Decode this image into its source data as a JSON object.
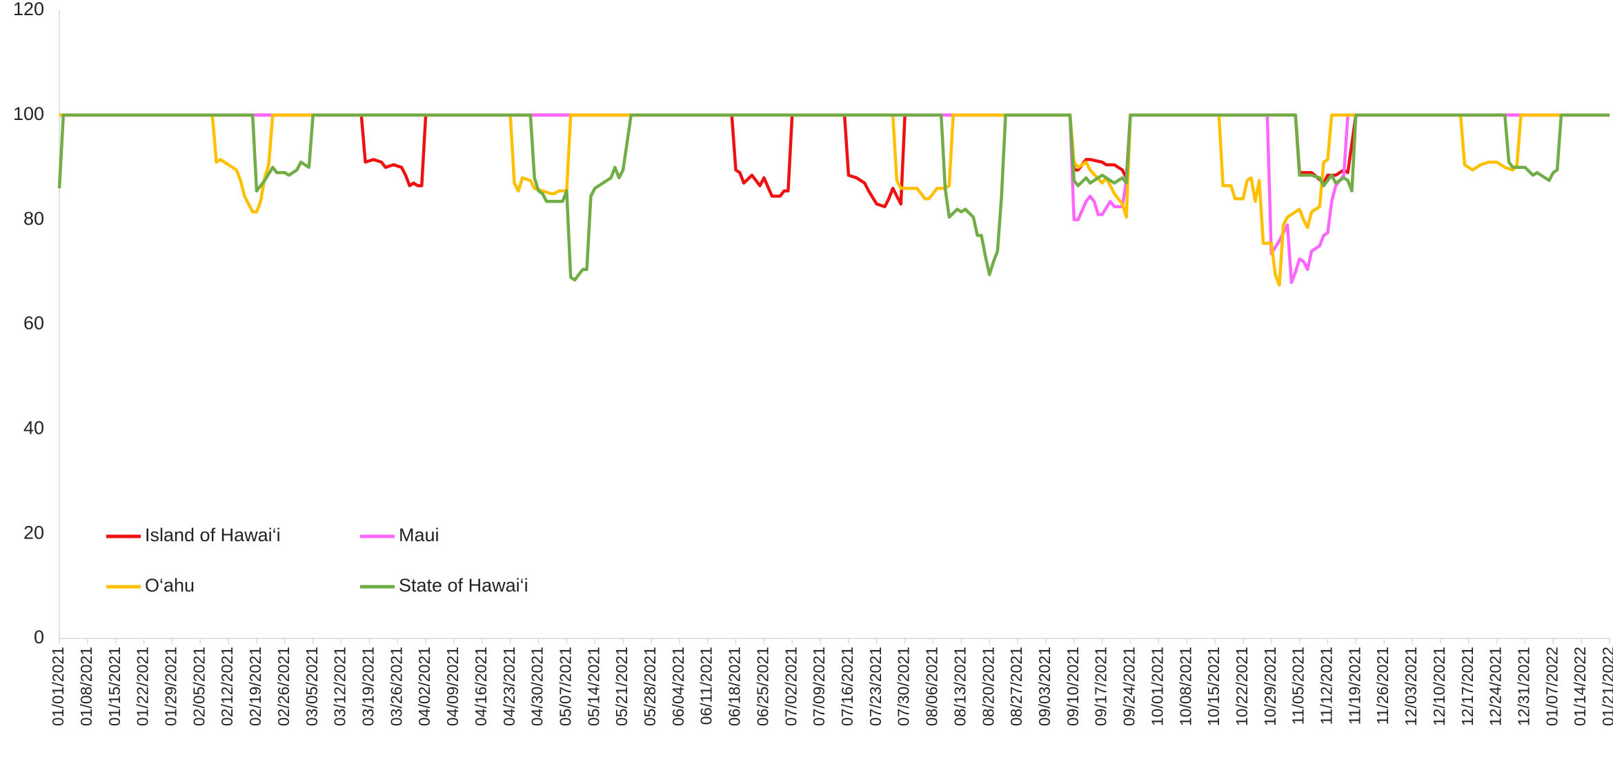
{
  "chart_data": {
    "type": "line",
    "xlim": [
      "01/01/2021",
      "01/21/2022"
    ],
    "xticks": [
      "01/01/2021",
      "01/08/2021",
      "01/15/2021",
      "01/22/2021",
      "01/29/2021",
      "02/05/2021",
      "02/12/2021",
      "02/19/2021",
      "02/26/2021",
      "03/05/2021",
      "03/12/2021",
      "03/19/2021",
      "03/26/2021",
      "04/02/2021",
      "04/09/2021",
      "04/16/2021",
      "04/23/2021",
      "04/30/2021",
      "05/07/2021",
      "05/14/2021",
      "05/21/2021",
      "05/28/2021",
      "06/04/2021",
      "06/11/2021",
      "06/18/2021",
      "06/25/2021",
      "07/02/2021",
      "07/09/2021",
      "07/16/2021",
      "07/23/2021",
      "07/30/2021",
      "08/06/2021",
      "08/13/2021",
      "08/20/2021",
      "08/27/2021",
      "09/03/2021",
      "09/10/2021",
      "09/17/2021",
      "09/24/2021",
      "10/01/2021",
      "10/08/2021",
      "10/15/2021",
      "10/22/2021",
      "10/29/2021",
      "11/05/2021",
      "11/12/2021",
      "11/19/2021",
      "11/26/2021",
      "12/03/2021",
      "12/10/2021",
      "12/17/2021",
      "12/24/2021",
      "12/31/2021",
      "01/07/2022",
      "01/14/2022",
      "01/21/2022"
    ],
    "ylim": [
      0,
      120
    ],
    "yticks": [
      0,
      20,
      40,
      60,
      80,
      100,
      120
    ],
    "grid": false,
    "legend": "lower left",
    "series": [
      {
        "name": "Island of Hawai‘i",
        "color": "#ee1111",
        "x": [
          "01/01/2021",
          "03/17/2021",
          "03/18/2021",
          "03/20/2021",
          "03/22/2021",
          "03/23/2021",
          "03/25/2021",
          "03/27/2021",
          "03/28/2021",
          "03/29/2021",
          "03/30/2021",
          "03/31/2021",
          "04/01/2021",
          "04/02/2021",
          "06/17/2021",
          "06/18/2021",
          "06/19/2021",
          "06/20/2021",
          "06/22/2021",
          "06/24/2021",
          "06/25/2021",
          "06/27/2021",
          "06/29/2021",
          "06/30/2021",
          "07/01/2021",
          "07/02/2021",
          "07/15/2021",
          "07/16/2021",
          "07/18/2021",
          "07/20/2021",
          "07/21/2021",
          "07/23/2021",
          "07/25/2021",
          "07/26/2021",
          "07/27/2021",
          "07/29/2021",
          "07/30/2021",
          "09/09/2021",
          "09/10/2021",
          "09/11/2021",
          "09/13/2021",
          "09/14/2021",
          "09/17/2021",
          "09/18/2021",
          "09/20/2021",
          "09/22/2021",
          "09/23/2021",
          "09/24/2021",
          "11/04/2021",
          "11/05/2021",
          "11/08/2021",
          "11/11/2021",
          "11/12/2021",
          "11/14/2021",
          "11/16/2021",
          "11/17/2021",
          "11/19/2021",
          "01/21/2022"
        ],
        "values": [
          100,
          100,
          91,
          91.5,
          91,
          90,
          90.5,
          90,
          88.5,
          86.5,
          87,
          86.5,
          86.5,
          100,
          100,
          89.5,
          89,
          87,
          88.5,
          86.5,
          88,
          84.5,
          84.5,
          85.5,
          85.5,
          100,
          100,
          88.5,
          88,
          87,
          85.5,
          83,
          82.5,
          84,
          86,
          83,
          100,
          100,
          89.5,
          89.5,
          91.5,
          91.5,
          91,
          90.5,
          90.5,
          89.5,
          88,
          100,
          100,
          89,
          89,
          87,
          88.5,
          88.5,
          89.5,
          89,
          100,
          100
        ]
      },
      {
        "name": "Maui",
        "color": "#ff66ff",
        "x": [
          "01/01/2021",
          "09/09/2021",
          "09/10/2021",
          "09/11/2021",
          "09/13/2021",
          "09/14/2021",
          "09/15/2021",
          "09/16/2021",
          "09/17/2021",
          "09/19/2021",
          "09/20/2021",
          "09/22/2021",
          "09/23/2021",
          "09/24/2021",
          "10/28/2021",
          "10/29/2021",
          "10/31/2021",
          "11/02/2021",
          "11/03/2021",
          "11/04/2021",
          "11/05/2021",
          "11/06/2021",
          "11/07/2021",
          "11/08/2021",
          "11/10/2021",
          "11/11/2021",
          "11/12/2021",
          "11/13/2021",
          "11/14/2021",
          "11/16/2021",
          "11/17/2021",
          "01/21/2022"
        ],
        "values": [
          100,
          100,
          80,
          80,
          83.5,
          84.5,
          83.5,
          81,
          81,
          83.5,
          82.5,
          82.5,
          87.5,
          100,
          100,
          73.5,
          76,
          79,
          68,
          70,
          72.5,
          72,
          70.5,
          74,
          75,
          77,
          77.5,
          83.5,
          86.5,
          88.5,
          100,
          100
        ]
      },
      {
        "name": "O‘ahu",
        "color": "#ffc000",
        "x": [
          "01/01/2021",
          "02/08/2021",
          "02/09/2021",
          "02/10/2021",
          "02/12/2021",
          "02/14/2021",
          "02/15/2021",
          "02/16/2021",
          "02/18/2021",
          "02/19/2021",
          "02/20/2021",
          "02/21/2021",
          "02/22/2021",
          "02/23/2021",
          "04/23/2021",
          "04/24/2021",
          "04/25/2021",
          "04/26/2021",
          "04/28/2021",
          "04/29/2021",
          "05/01/2021",
          "05/03/2021",
          "05/04/2021",
          "05/05/2021",
          "05/07/2021",
          "05/08/2021",
          "07/27/2021",
          "07/28/2021",
          "07/29/2021",
          "07/31/2021",
          "08/02/2021",
          "08/04/2021",
          "08/05/2021",
          "08/07/2021",
          "08/09/2021",
          "08/10/2021",
          "08/11/2021",
          "09/09/2021",
          "09/10/2021",
          "09/11/2021",
          "09/13/2021",
          "09/14/2021",
          "09/17/2021",
          "09/18/2021",
          "09/20/2021",
          "09/22/2021",
          "09/23/2021",
          "09/24/2021",
          "10/16/2021",
          "10/17/2021",
          "10/19/2021",
          "10/20/2021",
          "10/22/2021",
          "10/23/2021",
          "10/24/2021",
          "10/25/2021",
          "10/26/2021",
          "10/27/2021",
          "10/29/2021",
          "10/30/2021",
          "10/31/2021",
          "11/01/2021",
          "11/02/2021",
          "11/04/2021",
          "11/05/2021",
          "11/06/2021",
          "11/07/2021",
          "11/08/2021",
          "11/10/2021",
          "11/11/2021",
          "11/12/2021",
          "11/13/2021",
          "12/15/2021",
          "12/16/2021",
          "12/18/2021",
          "12/19/2021",
          "12/20/2021",
          "12/22/2021",
          "12/24/2021",
          "12/25/2021",
          "12/26/2021",
          "12/28/2021",
          "12/29/2021",
          "12/30/2021",
          "01/21/2022"
        ],
        "values": [
          100,
          100,
          91,
          91.5,
          90.5,
          89.5,
          87.5,
          84.5,
          81.5,
          81.5,
          83.5,
          88,
          90.5,
          100,
          100,
          87,
          85.5,
          88,
          87.5,
          86,
          85.5,
          85,
          85,
          85.5,
          85.5,
          100,
          100,
          87.5,
          86,
          86,
          86,
          84,
          84,
          86,
          86,
          86.5,
          100,
          100,
          91,
          90,
          91,
          89.5,
          87,
          88,
          85,
          83,
          80.5,
          100,
          100,
          86.5,
          86.5,
          84,
          84,
          87.5,
          88,
          83.5,
          87.5,
          75.5,
          75.5,
          69.5,
          67.5,
          79,
          80.5,
          81.5,
          82,
          80,
          78.5,
          81.5,
          82.5,
          91,
          91.5,
          100,
          100,
          90.5,
          89.5,
          90,
          90.5,
          91,
          91,
          90.5,
          90,
          89.5,
          90.5,
          100,
          100
        ]
      },
      {
        "name": "State of Hawai‘i",
        "color": "#70ad47",
        "x": [
          "01/01/2021",
          "01/02/2021",
          "02/18/2021",
          "02/19/2021",
          "02/20/2021",
          "02/21/2021",
          "02/23/2021",
          "02/24/2021",
          "02/26/2021",
          "02/27/2021",
          "03/01/2021",
          "03/02/2021",
          "03/04/2021",
          "03/05/2021",
          "04/28/2021",
          "04/29/2021",
          "04/30/2021",
          "05/01/2021",
          "05/02/2021",
          "05/04/2021",
          "05/06/2021",
          "05/07/2021",
          "05/08/2021",
          "05/09/2021",
          "05/11/2021",
          "05/12/2021",
          "05/13/2021",
          "05/14/2021",
          "05/16/2021",
          "05/18/2021",
          "05/19/2021",
          "05/20/2021",
          "05/21/2021",
          "05/23/2021",
          "08/08/2021",
          "08/09/2021",
          "08/10/2021",
          "08/12/2021",
          "08/13/2021",
          "08/14/2021",
          "08/16/2021",
          "08/17/2021",
          "08/18/2021",
          "08/19/2021",
          "08/20/2021",
          "08/21/2021",
          "08/22/2021",
          "08/23/2021",
          "08/24/2021",
          "09/09/2021",
          "09/10/2021",
          "09/11/2021",
          "09/13/2021",
          "09/14/2021",
          "09/17/2021",
          "09/18/2021",
          "09/20/2021",
          "09/22/2021",
          "09/23/2021",
          "09/24/2021",
          "11/04/2021",
          "11/05/2021",
          "11/08/2021",
          "11/10/2021",
          "11/11/2021",
          "11/13/2021",
          "11/14/2021",
          "11/16/2021",
          "11/17/2021",
          "11/18/2021",
          "11/19/2021",
          "12/26/2021",
          "12/27/2021",
          "12/28/2021",
          "12/30/2021",
          "12/31/2021",
          "01/02/2022",
          "01/03/2022",
          "01/04/2022",
          "01/06/2022",
          "01/07/2022",
          "01/08/2022",
          "01/09/2022",
          "01/21/2022"
        ],
        "values": [
          86,
          100,
          100,
          85.5,
          86.5,
          87.5,
          90,
          89,
          89,
          88.5,
          89.5,
          91,
          90,
          100,
          100,
          88,
          85.5,
          85,
          83.5,
          83.5,
          83.5,
          85.5,
          69,
          68.5,
          70.5,
          70.5,
          84.5,
          86,
          87,
          88,
          90,
          88,
          89.5,
          100,
          100,
          86,
          80.5,
          82,
          81.5,
          82,
          80.5,
          77,
          77,
          73,
          69.5,
          72,
          74,
          84.5,
          100,
          100,
          87.5,
          86.5,
          88,
          87,
          88.5,
          88,
          87,
          88,
          87,
          100,
          100,
          88.5,
          88.5,
          88,
          86.5,
          88.5,
          87,
          88,
          87.5,
          85.5,
          100,
          100,
          91,
          90,
          90,
          90,
          88.5,
          89,
          88.5,
          87.5,
          89,
          89.5,
          100,
          100
        ]
      }
    ]
  }
}
